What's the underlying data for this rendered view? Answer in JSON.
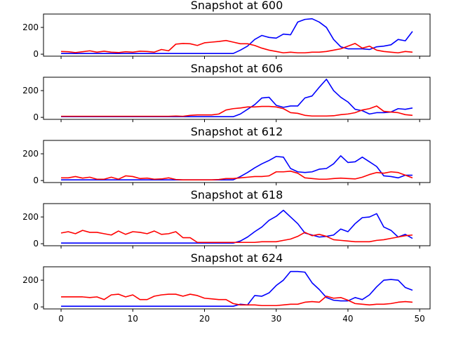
{
  "chart_data": [
    {
      "type": "line",
      "title": "Snapshot at 600",
      "x": [
        0,
        1,
        2,
        3,
        4,
        5,
        6,
        7,
        8,
        9,
        10,
        11,
        12,
        13,
        14,
        15,
        16,
        17,
        18,
        19,
        20,
        21,
        22,
        23,
        24,
        25,
        26,
        27,
        28,
        29,
        30,
        31,
        32,
        33,
        34,
        35,
        36,
        37,
        38,
        39,
        40,
        41,
        42,
        43,
        44,
        45,
        46,
        47,
        48,
        49
      ],
      "xlim": [
        -2.45,
        51.45
      ],
      "ylim": [
        -15,
        300
      ],
      "yticks": [
        0,
        200
      ],
      "show_xticklabels": false,
      "series": [
        {
          "color": "#0000ff",
          "values": [
            5,
            5,
            5,
            5,
            5,
            5,
            5,
            5,
            5,
            5,
            5,
            5,
            5,
            5,
            5,
            5,
            5,
            5,
            5,
            5,
            5,
            5,
            5,
            5,
            5,
            30,
            60,
            110,
            140,
            125,
            120,
            150,
            145,
            240,
            260,
            265,
            240,
            200,
            110,
            55,
            40,
            40,
            40,
            35,
            55,
            60,
            70,
            110,
            100,
            170
          ]
        },
        {
          "color": "#ff0000",
          "values": [
            20,
            18,
            12,
            18,
            25,
            15,
            22,
            15,
            12,
            18,
            15,
            22,
            20,
            15,
            35,
            25,
            75,
            80,
            78,
            65,
            85,
            90,
            95,
            102,
            90,
            78,
            78,
            65,
            45,
            30,
            20,
            10,
            15,
            10,
            10,
            15,
            15,
            20,
            30,
            40,
            60,
            80,
            45,
            60,
            30,
            20,
            15,
            10,
            20,
            15
          ]
        }
      ]
    },
    {
      "type": "line",
      "title": "Snapshot at 606",
      "x": [
        0,
        1,
        2,
        3,
        4,
        5,
        6,
        7,
        8,
        9,
        10,
        11,
        12,
        13,
        14,
        15,
        16,
        17,
        18,
        19,
        20,
        21,
        22,
        23,
        24,
        25,
        26,
        27,
        28,
        29,
        30,
        31,
        32,
        33,
        34,
        35,
        36,
        37,
        38,
        39,
        40,
        41,
        42,
        43,
        44,
        45,
        46,
        47,
        48,
        49
      ],
      "xlim": [
        -2.45,
        51.45
      ],
      "ylim": [
        -15,
        300
      ],
      "yticks": [
        0,
        200
      ],
      "show_xticklabels": false,
      "series": [
        {
          "color": "#0000ff",
          "values": [
            5,
            5,
            5,
            5,
            5,
            5,
            5,
            5,
            5,
            5,
            5,
            5,
            5,
            5,
            5,
            5,
            5,
            5,
            5,
            5,
            5,
            5,
            5,
            5,
            5,
            25,
            60,
            95,
            145,
            150,
            90,
            75,
            85,
            85,
            145,
            160,
            225,
            285,
            200,
            150,
            115,
            60,
            50,
            25,
            35,
            35,
            40,
            65,
            60,
            70
          ]
        },
        {
          "color": "#ff0000",
          "values": [
            8,
            8,
            8,
            8,
            8,
            8,
            8,
            8,
            8,
            8,
            8,
            8,
            8,
            8,
            8,
            8,
            10,
            8,
            15,
            18,
            18,
            18,
            25,
            55,
            65,
            70,
            78,
            78,
            82,
            82,
            78,
            65,
            35,
            30,
            15,
            10,
            10,
            10,
            12,
            20,
            25,
            35,
            55,
            65,
            85,
            45,
            40,
            35,
            20,
            15
          ]
        }
      ]
    },
    {
      "type": "line",
      "title": "Snapshot at 612",
      "x": [
        0,
        1,
        2,
        3,
        4,
        5,
        6,
        7,
        8,
        9,
        10,
        11,
        12,
        13,
        14,
        15,
        16,
        17,
        18,
        19,
        20,
        21,
        22,
        23,
        24,
        25,
        26,
        27,
        28,
        29,
        30,
        31,
        32,
        33,
        34,
        35,
        36,
        37,
        38,
        39,
        40,
        41,
        42,
        43,
        44,
        45,
        46,
        47,
        48,
        49
      ],
      "xlim": [
        -2.45,
        51.45
      ],
      "ylim": [
        -15,
        300
      ],
      "yticks": [
        0,
        200
      ],
      "show_xticklabels": false,
      "series": [
        {
          "color": "#0000ff",
          "values": [
            5,
            5,
            5,
            5,
            5,
            5,
            5,
            5,
            5,
            5,
            5,
            5,
            5,
            5,
            5,
            5,
            5,
            5,
            5,
            5,
            5,
            5,
            5,
            5,
            5,
            30,
            60,
            95,
            125,
            150,
            180,
            175,
            90,
            65,
            60,
            65,
            85,
            90,
            125,
            185,
            135,
            140,
            175,
            140,
            105,
            35,
            30,
            20,
            40,
            40
          ]
        },
        {
          "color": "#ff0000",
          "values": [
            20,
            20,
            30,
            18,
            25,
            10,
            10,
            25,
            10,
            35,
            30,
            15,
            18,
            10,
            12,
            20,
            8,
            5,
            5,
            5,
            5,
            5,
            8,
            15,
            15,
            20,
            25,
            30,
            30,
            35,
            65,
            65,
            70,
            55,
            20,
            15,
            10,
            10,
            15,
            18,
            15,
            12,
            25,
            45,
            60,
            55,
            65,
            60,
            40,
            20
          ]
        }
      ]
    },
    {
      "type": "line",
      "title": "Snapshot at 618",
      "x": [
        0,
        1,
        2,
        3,
        4,
        5,
        6,
        7,
        8,
        9,
        10,
        11,
        12,
        13,
        14,
        15,
        16,
        17,
        18,
        19,
        20,
        21,
        22,
        23,
        24,
        25,
        26,
        27,
        28,
        29,
        30,
        31,
        32,
        33,
        34,
        35,
        36,
        37,
        38,
        39,
        40,
        41,
        42,
        43,
        44,
        45,
        46,
        47,
        48,
        49
      ],
      "xlim": [
        -2.45,
        51.45
      ],
      "ylim": [
        -15,
        300
      ],
      "yticks": [
        0,
        200
      ],
      "show_xticklabels": false,
      "series": [
        {
          "color": "#0000ff",
          "values": [
            5,
            5,
            5,
            5,
            5,
            5,
            5,
            5,
            5,
            5,
            5,
            5,
            5,
            5,
            5,
            5,
            5,
            5,
            5,
            5,
            5,
            5,
            5,
            5,
            5,
            20,
            50,
            90,
            125,
            175,
            205,
            250,
            200,
            150,
            80,
            65,
            50,
            55,
            65,
            110,
            90,
            150,
            195,
            200,
            225,
            125,
            100,
            50,
            70,
            40
          ]
        },
        {
          "color": "#ff0000",
          "values": [
            80,
            90,
            75,
            100,
            85,
            85,
            75,
            65,
            95,
            70,
            90,
            85,
            75,
            95,
            70,
            75,
            90,
            45,
            45,
            10,
            10,
            10,
            10,
            10,
            10,
            10,
            10,
            10,
            15,
            15,
            15,
            25,
            35,
            55,
            85,
            60,
            70,
            55,
            30,
            25,
            20,
            15,
            15,
            15,
            25,
            30,
            40,
            50,
            60,
            65
          ]
        }
      ]
    },
    {
      "type": "line",
      "title": "Snapshot at 624",
      "x": [
        0,
        1,
        2,
        3,
        4,
        5,
        6,
        7,
        8,
        9,
        10,
        11,
        12,
        13,
        14,
        15,
        16,
        17,
        18,
        19,
        20,
        21,
        22,
        23,
        24,
        25,
        26,
        27,
        28,
        29,
        30,
        31,
        32,
        33,
        34,
        35,
        36,
        37,
        38,
        39,
        40,
        41,
        42,
        43,
        44,
        45,
        46,
        47,
        48,
        49
      ],
      "xlim": [
        -2.45,
        51.45
      ],
      "ylim": [
        -15,
        300
      ],
      "yticks": [
        0,
        200
      ],
      "xticks": [
        0,
        10,
        20,
        30,
        40,
        50
      ],
      "show_xticklabels": true,
      "series": [
        {
          "color": "#0000ff",
          "values": [
            5,
            5,
            5,
            5,
            5,
            5,
            5,
            5,
            5,
            5,
            5,
            5,
            5,
            5,
            5,
            5,
            5,
            5,
            5,
            5,
            5,
            5,
            5,
            5,
            5,
            20,
            15,
            85,
            80,
            105,
            160,
            200,
            265,
            265,
            260,
            180,
            130,
            70,
            50,
            45,
            45,
            70,
            55,
            90,
            150,
            200,
            205,
            200,
            145,
            125
          ]
        },
        {
          "color": "#ff0000",
          "values": [
            75,
            75,
            75,
            75,
            70,
            75,
            55,
            90,
            95,
            75,
            90,
            55,
            55,
            80,
            90,
            95,
            95,
            80,
            95,
            85,
            65,
            60,
            55,
            55,
            25,
            15,
            15,
            15,
            10,
            10,
            10,
            15,
            20,
            20,
            35,
            40,
            35,
            80,
            65,
            70,
            50,
            25,
            20,
            15,
            20,
            20,
            25,
            35,
            40,
            35
          ]
        }
      ]
    }
  ]
}
